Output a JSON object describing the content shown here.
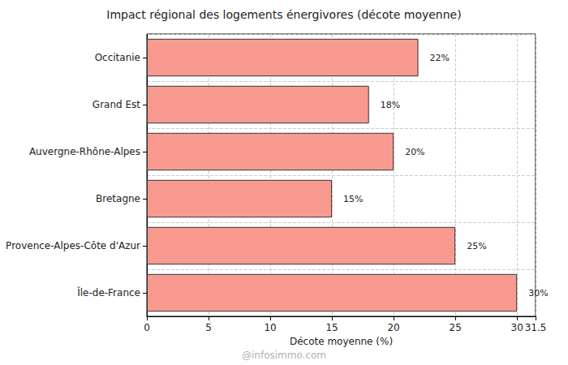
{
  "chart_data": {
    "type": "bar",
    "orientation": "horizontal",
    "title": "Impact régional des logements énergivores (décote moyenne)",
    "xlabel": "Décote moyenne (%)",
    "categories": [
      "Île-de-France",
      "Provence-Alpes-Côte d'Azur",
      "Bretagne",
      "Auvergne-Rhône-Alpes",
      "Grand Est",
      "Occitanie"
    ],
    "values": [
      30,
      25,
      15,
      20,
      18,
      22
    ],
    "value_labels": [
      "30%",
      "25%",
      "15%",
      "20%",
      "18%",
      "22%"
    ],
    "data_labels": true,
    "color": "#f99a90",
    "xlim": [
      0,
      31.5
    ],
    "xticks": [
      0,
      5,
      10,
      15,
      20,
      25,
      30
    ],
    "grid": true,
    "annotations": [
      "@infosimmo.com"
    ]
  }
}
